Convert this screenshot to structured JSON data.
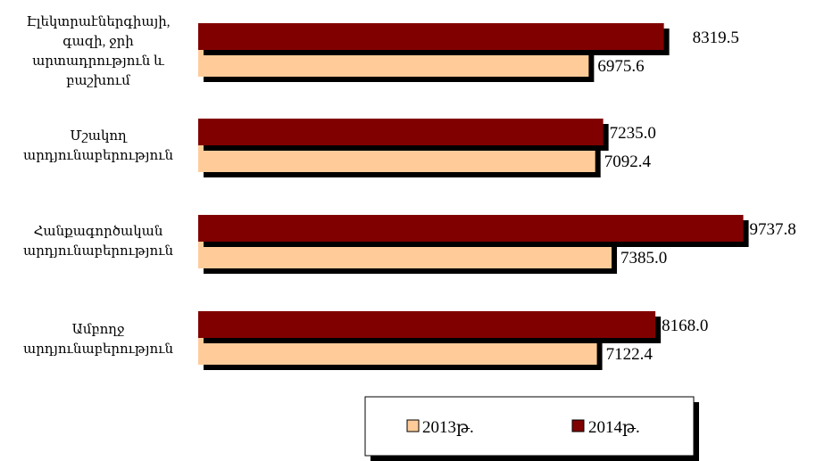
{
  "chart_data": {
    "type": "bar",
    "orientation": "horizontal",
    "categories": [
      [
        "Էլեկտրաէներգիայի,",
        "գազի, ջրի",
        "արտադրություն և",
        "բաշխում"
      ],
      [
        "Մշակող",
        "արդյունաբերություն"
      ],
      [
        "Հանքագործական",
        "արդյունաբերություն"
      ],
      [
        "Ամբողջ",
        "արդյունաբերություն"
      ]
    ],
    "series": [
      {
        "name": "2014թ.",
        "values": [
          8319.5,
          7235.0,
          9737.8,
          8168.0
        ],
        "labels": [
          "8319.5",
          "7235.0",
          "9737.8",
          "8168.0"
        ],
        "color": "#800000"
      },
      {
        "name": "2013թ.",
        "values": [
          6975.6,
          7092.4,
          7385.0,
          7122.4
        ],
        "labels": [
          "6975.6",
          "7092.4",
          "7385.0",
          "7122.4"
        ],
        "color": "#ffcc99"
      }
    ],
    "legend_order": [
      "2013թ.",
      "2014թ."
    ],
    "legend_position": "bottom-right",
    "grid": false,
    "shadow_color": "#000000",
    "xlim": [
      0,
      9737.8
    ]
  }
}
